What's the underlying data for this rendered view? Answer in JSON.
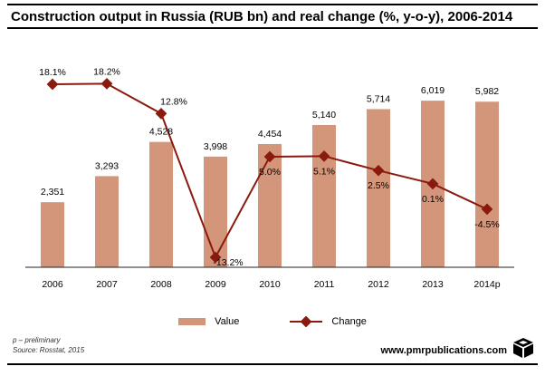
{
  "header": {
    "title": "Construction output in Russia (RUB bn) and real change (%, y-o-y), 2006-2014"
  },
  "chart_data": {
    "type": "bar",
    "title": "Construction output in Russia (RUB bn) and real change (%, y-o-y), 2006-2014",
    "categories": [
      "2006",
      "2007",
      "2008",
      "2009",
      "2010",
      "2011",
      "2012",
      "2013",
      "2014p"
    ],
    "series": [
      {
        "name": "Value",
        "type": "bar",
        "values": [
          2351,
          3293,
          4528,
          3998,
          4454,
          5140,
          5714,
          6019,
          5982
        ],
        "labels": [
          "2,351",
          "3,293",
          "4,528",
          "3,998",
          "4,454",
          "5,140",
          "5,714",
          "6,019",
          "5,982"
        ],
        "color": "#D4967A"
      },
      {
        "name": "Change",
        "type": "line",
        "values": [
          18.1,
          18.2,
          12.8,
          -13.2,
          5.0,
          5.1,
          2.5,
          0.1,
          -4.5
        ],
        "labels": [
          "18.1%",
          "18.2%",
          "12.8%",
          "-13.2%",
          "5.0%",
          "5.1%",
          "2.5%",
          "0.1%",
          "-4.5%"
        ],
        "color": "#8B1A0E"
      }
    ],
    "ylim": [
      0,
      7000
    ],
    "ylim_secondary": [
      -15,
      25
    ],
    "grid": false,
    "legend": "bottom-center"
  },
  "legend": {
    "value_label": "Value",
    "change_label": "Change"
  },
  "footer": {
    "note1": "p – preliminary",
    "note2": "Source: Rosstat, 2015",
    "website": "www.pmrpublications.com"
  }
}
